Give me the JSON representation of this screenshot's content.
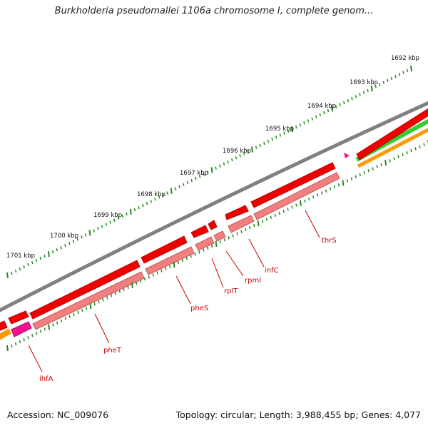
{
  "title": "Burkholderia pseudomallei 1106a chromosome I, complete genom...",
  "footer": {
    "accession": "Accession: NC_009076",
    "summary": "Topology: circular; Length: 3,988,455 bp; Genes: 4,077"
  },
  "colors": {
    "backbone": "#808080",
    "cds_forward": "#ee0000",
    "cds_reverse": "#f08080",
    "ihfA_pink": "#ee1493",
    "orange": "#ff9900",
    "green": "#33cc33",
    "tick": "#228b22",
    "label": "#cc0000"
  },
  "kbp_labels": [
    "1692 kbp",
    "1693 kbp",
    "1694 kbp",
    "1695 kbp",
    "1696 kbp",
    "1697 kbp",
    "1698 kbp",
    "1699 kbp",
    "1700 kbp",
    "1701 kbp"
  ],
  "gene_labels": [
    "thrS",
    "infC",
    "rpmI",
    "rplT",
    "pheS",
    "pheT",
    "ihfA"
  ]
}
